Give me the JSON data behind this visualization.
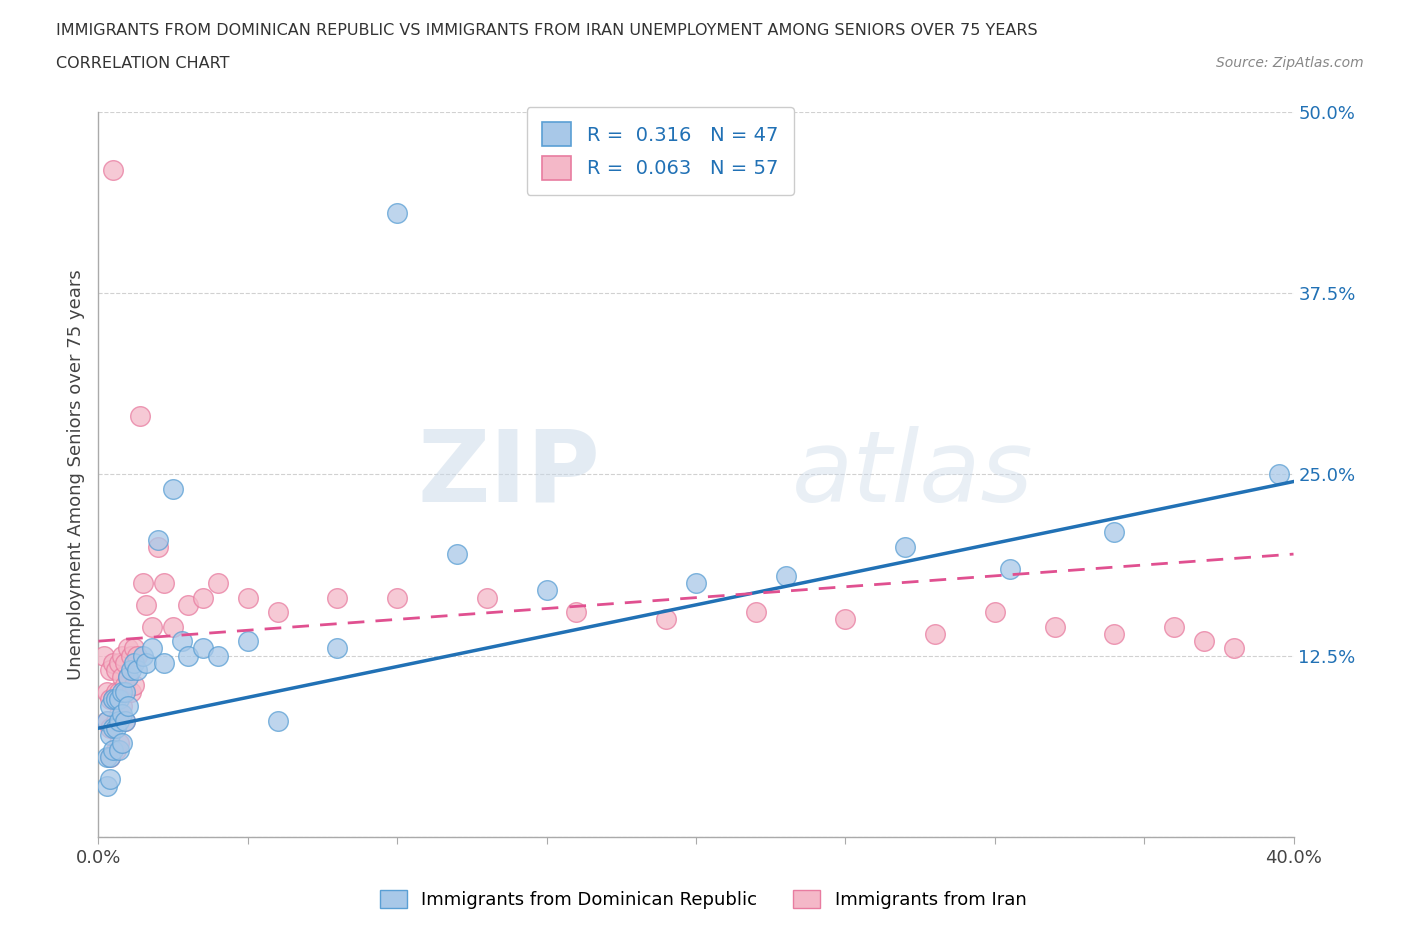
{
  "title_line1": "IMMIGRANTS FROM DOMINICAN REPUBLIC VS IMMIGRANTS FROM IRAN UNEMPLOYMENT AMONG SENIORS OVER 75 YEARS",
  "title_line2": "CORRELATION CHART",
  "source_text": "Source: ZipAtlas.com",
  "xlabel": "Immigrants from Dominican Republic",
  "ylabel": "Unemployment Among Seniors over 75 years",
  "xlim": [
    0.0,
    0.4
  ],
  "ylim": [
    0.0,
    0.5
  ],
  "yticks": [
    0.0,
    0.125,
    0.25,
    0.375,
    0.5
  ],
  "ytick_labels": [
    "",
    "12.5%",
    "25.0%",
    "37.5%",
    "50.0%"
  ],
  "xticks": [
    0.0,
    0.05,
    0.1,
    0.15,
    0.2,
    0.25,
    0.3,
    0.35,
    0.4
  ],
  "blue_R": 0.316,
  "blue_N": 47,
  "pink_R": 0.063,
  "pink_N": 57,
  "blue_color": "#a8c8e8",
  "pink_color": "#f4b8c8",
  "blue_edge_color": "#5a9fd4",
  "pink_edge_color": "#e87ca0",
  "blue_line_color": "#2171b5",
  "pink_line_color": "#e05090",
  "watermark_zip": "ZIP",
  "watermark_atlas": "atlas",
  "blue_scatter_x": [
    0.003,
    0.003,
    0.003,
    0.004,
    0.004,
    0.004,
    0.004,
    0.005,
    0.005,
    0.005,
    0.006,
    0.006,
    0.007,
    0.007,
    0.007,
    0.008,
    0.008,
    0.008,
    0.009,
    0.009,
    0.01,
    0.01,
    0.011,
    0.012,
    0.013,
    0.015,
    0.016,
    0.018,
    0.02,
    0.022,
    0.025,
    0.028,
    0.03,
    0.035,
    0.04,
    0.05,
    0.06,
    0.08,
    0.1,
    0.12,
    0.15,
    0.2,
    0.23,
    0.27,
    0.305,
    0.34,
    0.395
  ],
  "blue_scatter_y": [
    0.08,
    0.055,
    0.035,
    0.09,
    0.07,
    0.055,
    0.04,
    0.095,
    0.075,
    0.06,
    0.095,
    0.075,
    0.095,
    0.08,
    0.06,
    0.1,
    0.085,
    0.065,
    0.1,
    0.08,
    0.11,
    0.09,
    0.115,
    0.12,
    0.115,
    0.125,
    0.12,
    0.13,
    0.205,
    0.12,
    0.24,
    0.135,
    0.125,
    0.13,
    0.125,
    0.135,
    0.08,
    0.13,
    0.43,
    0.195,
    0.17,
    0.175,
    0.18,
    0.2,
    0.185,
    0.21,
    0.25
  ],
  "pink_scatter_x": [
    0.002,
    0.003,
    0.003,
    0.004,
    0.004,
    0.004,
    0.004,
    0.005,
    0.005,
    0.005,
    0.006,
    0.006,
    0.006,
    0.006,
    0.007,
    0.007,
    0.007,
    0.007,
    0.008,
    0.008,
    0.008,
    0.009,
    0.009,
    0.009,
    0.01,
    0.01,
    0.011,
    0.011,
    0.012,
    0.012,
    0.013,
    0.014,
    0.015,
    0.016,
    0.018,
    0.02,
    0.022,
    0.025,
    0.03,
    0.035,
    0.04,
    0.05,
    0.06,
    0.08,
    0.1,
    0.13,
    0.16,
    0.19,
    0.22,
    0.25,
    0.28,
    0.3,
    0.32,
    0.34,
    0.36,
    0.37,
    0.38
  ],
  "pink_scatter_y": [
    0.125,
    0.1,
    0.08,
    0.115,
    0.095,
    0.075,
    0.055,
    0.46,
    0.12,
    0.095,
    0.115,
    0.1,
    0.08,
    0.06,
    0.12,
    0.1,
    0.085,
    0.065,
    0.125,
    0.11,
    0.09,
    0.12,
    0.105,
    0.08,
    0.13,
    0.11,
    0.125,
    0.1,
    0.13,
    0.105,
    0.125,
    0.29,
    0.175,
    0.16,
    0.145,
    0.2,
    0.175,
    0.145,
    0.16,
    0.165,
    0.175,
    0.165,
    0.155,
    0.165,
    0.165,
    0.165,
    0.155,
    0.15,
    0.155,
    0.15,
    0.14,
    0.155,
    0.145,
    0.14,
    0.145,
    0.135,
    0.13
  ],
  "blue_trendline_x": [
    0.0,
    0.4
  ],
  "blue_trendline_y": [
    0.075,
    0.245
  ],
  "pink_trendline_x": [
    0.0,
    0.4
  ],
  "pink_trendline_y": [
    0.135,
    0.195
  ]
}
